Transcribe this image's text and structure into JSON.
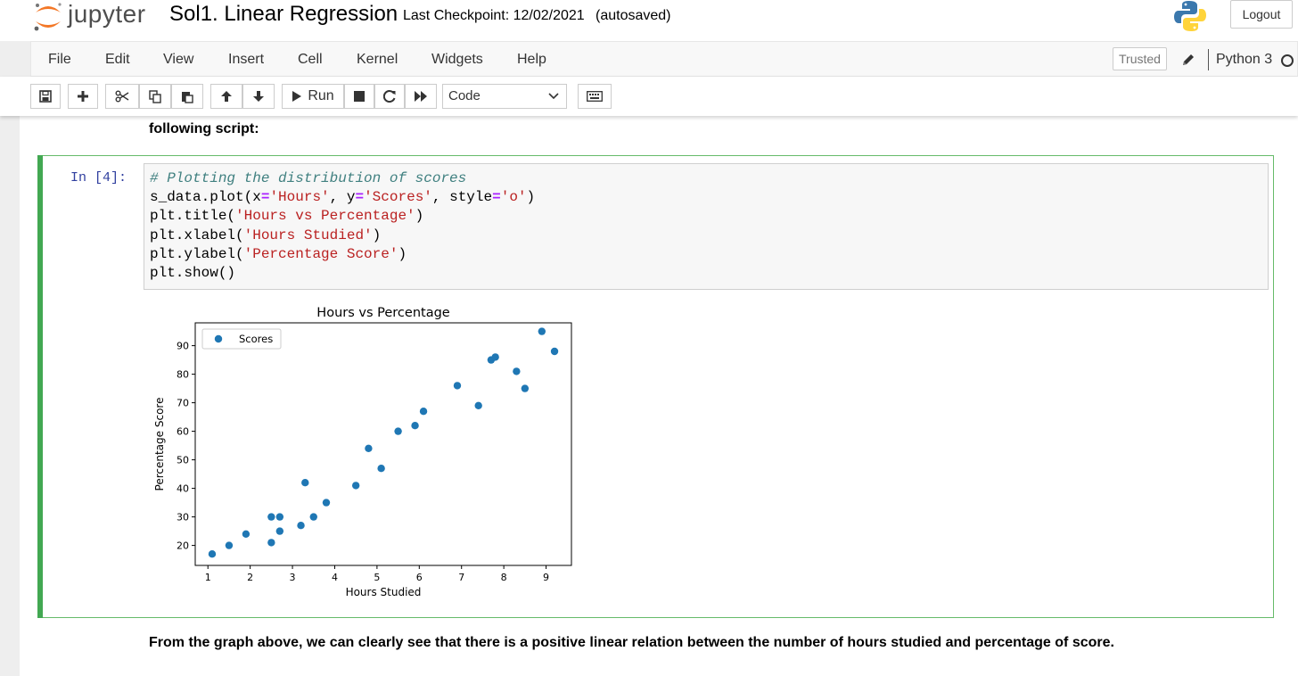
{
  "header": {
    "logo_text": "jupyter",
    "notebook_title": "Sol1. Linear Regression",
    "checkpoint_text": "Last Checkpoint: 12/02/2021",
    "autosave_status": "(autosaved)",
    "logout_label": "Logout"
  },
  "menubar": {
    "items": [
      "File",
      "Edit",
      "View",
      "Insert",
      "Cell",
      "Kernel",
      "Widgets",
      "Help"
    ],
    "trusted_label": "Trusted",
    "kernel_name": "Python 3"
  },
  "toolbar": {
    "run_label": "Run",
    "cell_type": "Code",
    "buttons": [
      "save-icon",
      "plus-icon",
      "scissors-icon",
      "copy-icon",
      "paste-icon",
      "arrow-up-icon",
      "arrow-down-icon",
      "run-icon",
      "stop-icon",
      "restart-icon",
      "fast-forward-icon",
      "keyboard-icon"
    ]
  },
  "notebook": {
    "markdown_top": "following script:",
    "cell": {
      "prompt": "In [4]:",
      "code": {
        "line1": "# Plotting the distribution of scores",
        "line2_a": "s_data.plot(x",
        "line2_b": "=",
        "line2_c": "'Hours'",
        "line2_d": ", y",
        "line2_e": "=",
        "line2_f": "'Scores'",
        "line2_g": ", style",
        "line2_h": "=",
        "line2_i": "'o'",
        "line2_j": ")",
        "line3_a": "plt.title(",
        "line3_b": "'Hours vs Percentage'",
        "line3_c": ")",
        "line4_a": "plt.xlabel(",
        "line4_b": "'Hours Studied'",
        "line4_c": ")",
        "line5_a": "plt.ylabel(",
        "line5_b": "'Percentage Score'",
        "line5_c": ")",
        "line6": "plt.show()"
      }
    },
    "markdown_bottom": "From the graph above, we can clearly see that there is a positive linear relation between the number of hours studied and percentage of score."
  },
  "colors": {
    "accent_green": "#42a852",
    "prompt_blue": "#303f9f",
    "point_blue": "#1f77b4"
  },
  "chart_data": {
    "type": "scatter",
    "title": "Hours vs Percentage",
    "xlabel": "Hours Studied",
    "ylabel": "Percentage Score",
    "xlim": [
      0.7,
      9.6
    ],
    "ylim": [
      13,
      98
    ],
    "xticks": [
      1,
      2,
      3,
      4,
      5,
      6,
      7,
      8,
      9
    ],
    "yticks": [
      20,
      30,
      40,
      50,
      60,
      70,
      80,
      90
    ],
    "legend": {
      "position": "top-left",
      "entries": [
        "Scores"
      ]
    },
    "grid": false,
    "series": [
      {
        "name": "Scores",
        "x": [
          2.5,
          5.1,
          3.2,
          8.5,
          3.5,
          1.5,
          9.2,
          5.5,
          8.3,
          2.7,
          7.7,
          5.9,
          4.5,
          3.3,
          1.1,
          8.9,
          2.5,
          1.9,
          6.1,
          7.4,
          2.7,
          4.8,
          3.8,
          6.9,
          7.8
        ],
        "y": [
          21,
          47,
          27,
          75,
          30,
          20,
          88,
          60,
          81,
          25,
          85,
          62,
          41,
          42,
          17,
          95,
          30,
          24,
          67,
          69,
          30,
          54,
          35,
          76,
          86
        ]
      }
    ]
  }
}
